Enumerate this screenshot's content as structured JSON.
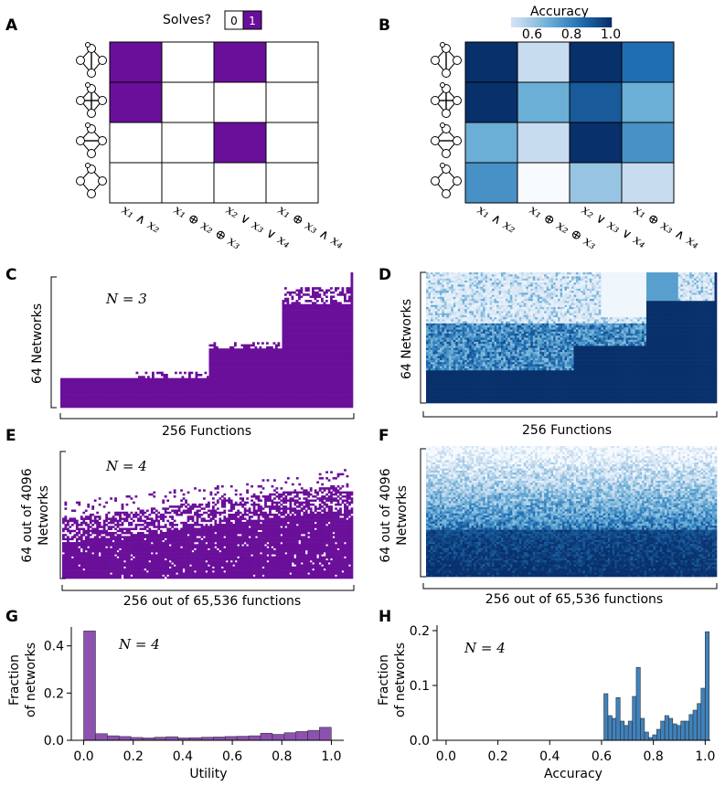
{
  "panel_labels": [
    "A",
    "B",
    "C",
    "D",
    "E",
    "F",
    "G",
    "H"
  ],
  "colors": {
    "purple": "#6a0f99",
    "hist_purple": "#8c51b1",
    "hist_blue": "#3f82bd",
    "blues": [
      "#f7fbff",
      "#c6dbef",
      "#6baed6",
      "#2171b5",
      "#08306b"
    ]
  },
  "panel_a": {
    "legend_title": "Solves?",
    "legend_items": [
      "0",
      "1"
    ],
    "networks": [
      "network-1",
      "network-2",
      "network-3",
      "network-4"
    ],
    "functions": [
      "x₁ ∧ x₂",
      "x₁ ⊕ x₂ ⊕ x₃",
      "x₂ ∨ x₃ ∨ x₄",
      "x₁ ⊕ x₃ ∧ x₄"
    ],
    "solves": [
      [
        1,
        0,
        1,
        0
      ],
      [
        1,
        0,
        0,
        0
      ],
      [
        0,
        0,
        1,
        0
      ],
      [
        0,
        0,
        0,
        0
      ]
    ]
  },
  "panel_b": {
    "colorbar_label": "Accuracy",
    "colorbar_ticks": [
      "0.6",
      "0.8",
      "1.0"
    ],
    "functions": [
      "x₁ ∧ x₂",
      "x₁ ⊕ x₂ ⊕ x₃",
      "x₂ ∨ x₃ ∨ x₄",
      "x₁ ⊕ x₃ ∧ x₄"
    ],
    "accuracy": [
      [
        1.0,
        0.62,
        1.0,
        0.88
      ],
      [
        1.0,
        0.75,
        0.92,
        0.75
      ],
      [
        0.75,
        0.62,
        1.0,
        0.81
      ],
      [
        0.81,
        0.5,
        0.69,
        0.62
      ]
    ]
  },
  "panel_c": {
    "annotation": "N = 3",
    "ylabel": "64 Networks",
    "xlabel": "256 Functions"
  },
  "panel_d": {
    "ylabel": "64 Networks",
    "xlabel": "256 Functions"
  },
  "panel_e": {
    "annotation": "N = 4",
    "ylabel_line1": "64 out of 4096",
    "ylabel_line2": "Networks",
    "xlabel": "256 out of 65,536 functions"
  },
  "panel_f": {
    "ylabel_line1": "64 out of 4096",
    "ylabel_line2": "Networks",
    "xlabel": "256 out of 65,536 functions"
  },
  "chart_data": [
    {
      "panel": "G",
      "type": "bar",
      "annotation": "N = 4",
      "xlabel": "Utility",
      "ylabel_line1": "Fraction",
      "ylabel_line2": "of networks",
      "xlim": [
        -0.05,
        1.05
      ],
      "ylim": [
        0,
        0.48
      ],
      "xticks": [
        "0.0",
        "0.2",
        "0.4",
        "0.6",
        "0.8",
        "1.0"
      ],
      "yticks": [
        "0.0",
        "0.2",
        "0.4"
      ],
      "bin_width": 0.0476,
      "x": [
        0.0,
        0.048,
        0.095,
        0.143,
        0.19,
        0.238,
        0.286,
        0.333,
        0.381,
        0.429,
        0.476,
        0.524,
        0.571,
        0.619,
        0.667,
        0.714,
        0.762,
        0.81,
        0.857,
        0.905,
        0.952
      ],
      "values": [
        0.463,
        0.028,
        0.019,
        0.016,
        0.012,
        0.01,
        0.013,
        0.015,
        0.01,
        0.011,
        0.013,
        0.014,
        0.016,
        0.017,
        0.019,
        0.03,
        0.025,
        0.032,
        0.037,
        0.042,
        0.055
      ]
    },
    {
      "panel": "H",
      "type": "bar",
      "annotation": "N = 4",
      "xlabel": "Accuracy",
      "ylabel_line1": "Fraction",
      "ylabel_line2": "of networks",
      "xlim": [
        -0.035,
        1.02
      ],
      "ylim": [
        0,
        0.21
      ],
      "xticks": [
        "0.0",
        "0.2",
        "0.4",
        "0.6",
        "0.8",
        "1.0"
      ],
      "yticks": [
        "0.0",
        "0.1",
        "0.2"
      ],
      "bin_width": 0.0156,
      "x": [
        0.609,
        0.625,
        0.641,
        0.656,
        0.672,
        0.688,
        0.703,
        0.719,
        0.734,
        0.75,
        0.766,
        0.781,
        0.797,
        0.813,
        0.828,
        0.844,
        0.859,
        0.875,
        0.891,
        0.906,
        0.922,
        0.938,
        0.953,
        0.969,
        0.984,
        1.0
      ],
      "values": [
        0.085,
        0.045,
        0.04,
        0.078,
        0.035,
        0.027,
        0.035,
        0.08,
        0.133,
        0.04,
        0.015,
        0.005,
        0.01,
        0.02,
        0.035,
        0.045,
        0.04,
        0.03,
        0.027,
        0.035,
        0.035,
        0.047,
        0.055,
        0.067,
        0.095,
        0.198
      ]
    }
  ]
}
